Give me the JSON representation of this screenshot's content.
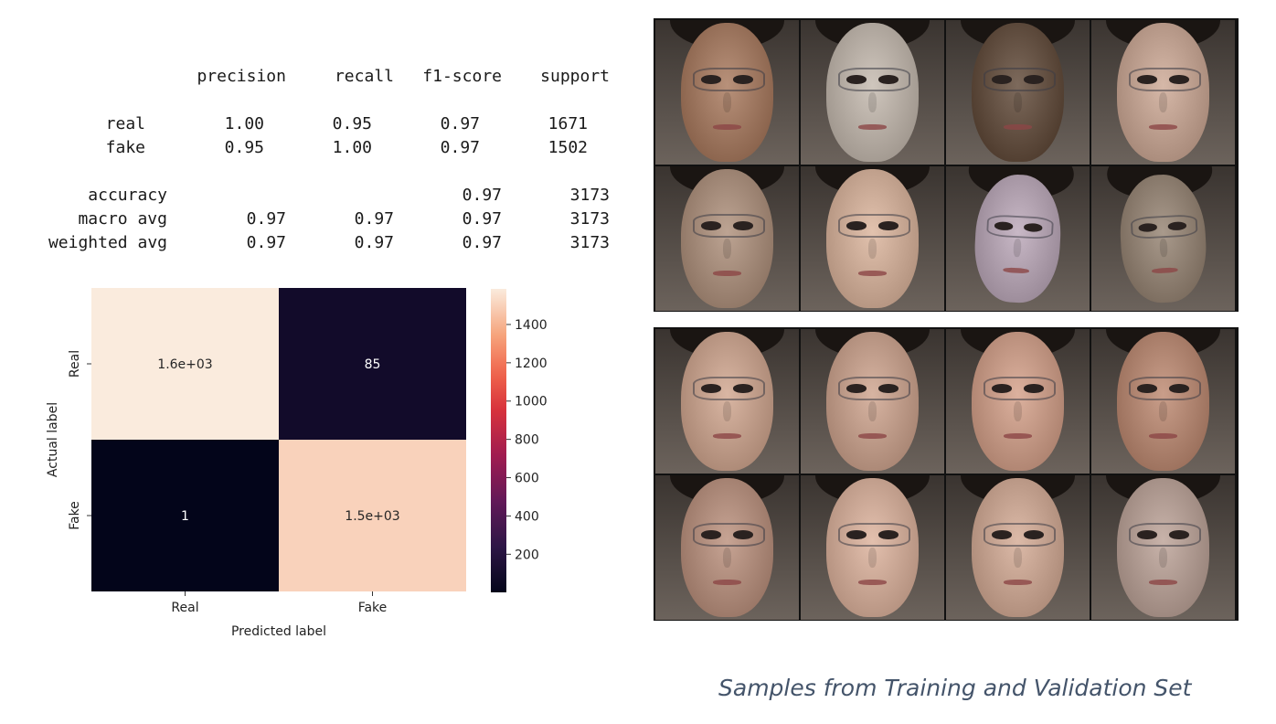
{
  "report": {
    "columns": [
      "precision",
      "recall",
      "f1-score",
      "support"
    ],
    "rows": [
      {
        "label": "real",
        "precision": "1.00",
        "recall": "0.95",
        "f1": "0.97",
        "support": "1671"
      },
      {
        "label": "fake",
        "precision": "0.95",
        "recall": "1.00",
        "f1": "0.97",
        "support": "1502"
      }
    ],
    "summary": [
      {
        "label": "accuracy",
        "precision": "",
        "recall": "",
        "f1": "0.97",
        "support": "3173"
      },
      {
        "label": "macro avg",
        "precision": "0.97",
        "recall": "0.97",
        "f1": "0.97",
        "support": "3173"
      },
      {
        "label": "weighted avg",
        "precision": "0.97",
        "recall": "0.97",
        "f1": "0.97",
        "support": "3173"
      }
    ]
  },
  "chart_data": {
    "type": "heatmap",
    "x_categories": [
      "Real",
      "Fake"
    ],
    "y_categories": [
      "Real",
      "Fake"
    ],
    "values": [
      [
        1586,
        85
      ],
      [
        1,
        1501
      ]
    ],
    "cell_labels": [
      [
        "1.6e+03",
        "85"
      ],
      [
        "1",
        "1.5e+03"
      ]
    ],
    "xlabel": "Predicted label",
    "ylabel": "Actual label",
    "colorbar": {
      "ticks": [
        200,
        400,
        600,
        800,
        1000,
        1200,
        1400
      ],
      "range": [
        1,
        1586
      ],
      "colormap": "rocket"
    }
  },
  "photos": {
    "training_tones": [
      "#b8917a",
      "#cfc6bd",
      "#7d6a5c",
      "#d6b8a8",
      "#bda493",
      "#e2c2ae",
      "#c8b8c6",
      "#a99a8c"
    ],
    "validation_tones": [
      "#d9b6a3",
      "#d7b4a2",
      "#dcb19e",
      "#c99e8a",
      "#c7a494",
      "#e3c0ae",
      "#dcbaa8",
      "#c8b3aa"
    ]
  },
  "caption": "Samples from Training and Validation Set"
}
